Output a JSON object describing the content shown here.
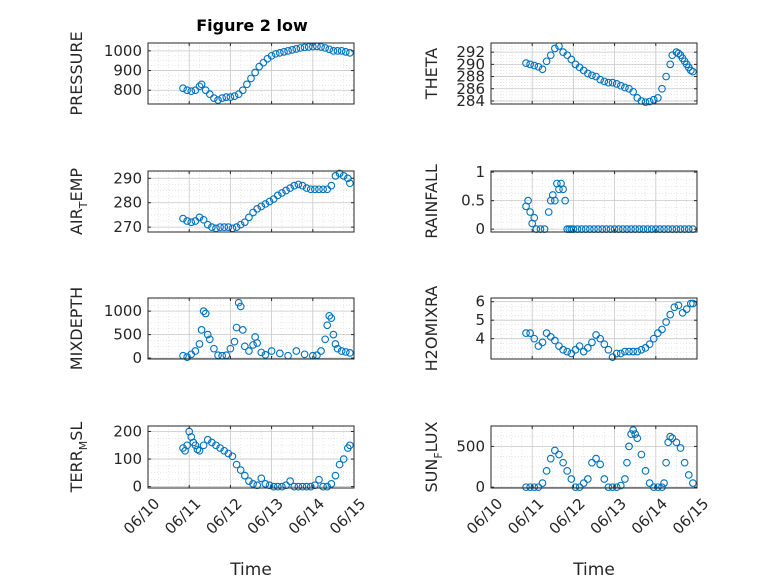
{
  "figure": {
    "title": "Figure 2 low"
  },
  "chart_data": [
    {
      "type": "scatter",
      "ylabel": "PRESSURE",
      "ylim": [
        730,
        1040
      ],
      "yticks": [
        800,
        900,
        1000
      ],
      "xticks": [
        "06/10",
        "06/11",
        "06/12",
        "06/13",
        "06/14",
        "06/15"
      ],
      "xlabel": "",
      "grid": true,
      "x": [
        0.85,
        0.95,
        1.05,
        1.15,
        1.25,
        1.3,
        1.4,
        1.5,
        1.6,
        1.7,
        1.8,
        1.9,
        2.0,
        2.1,
        2.2,
        2.3,
        2.4,
        2.5,
        2.6,
        2.7,
        2.8,
        2.9,
        3.0,
        3.1,
        3.2,
        3.3,
        3.4,
        3.5,
        3.6,
        3.7,
        3.8,
        3.9,
        4.0,
        4.1,
        4.2,
        4.3,
        4.4,
        4.5,
        4.6,
        4.7,
        4.8,
        4.9
      ],
      "y": [
        810,
        800,
        795,
        800,
        820,
        830,
        800,
        780,
        760,
        750,
        760,
        765,
        765,
        770,
        780,
        800,
        830,
        860,
        890,
        920,
        940,
        960,
        975,
        985,
        990,
        995,
        1000,
        1005,
        1010,
        1015,
        1018,
        1020,
        1022,
        1023,
        1020,
        1015,
        1008,
        1000,
        1000,
        1000,
        995,
        990
      ]
    },
    {
      "type": "scatter",
      "ylabel": "THETA",
      "ylim": [
        283.5,
        293.5
      ],
      "yticks": [
        284,
        286,
        288,
        290,
        292
      ],
      "xticks": [
        "06/10",
        "06/11",
        "06/12",
        "06/13",
        "06/14",
        "06/15"
      ],
      "xlabel": "",
      "grid": true,
      "x": [
        0.85,
        0.95,
        1.05,
        1.15,
        1.25,
        1.35,
        1.45,
        1.55,
        1.65,
        1.75,
        1.85,
        1.95,
        2.05,
        2.15,
        2.25,
        2.35,
        2.45,
        2.55,
        2.65,
        2.75,
        2.85,
        2.95,
        3.05,
        3.15,
        3.25,
        3.35,
        3.45,
        3.55,
        3.65,
        3.75,
        3.85,
        3.95,
        4.05,
        4.15,
        4.25,
        4.35,
        4.4,
        4.5,
        4.55,
        4.6,
        4.65,
        4.7,
        4.75,
        4.8,
        4.85,
        4.9
      ],
      "y": [
        290.2,
        290,
        289.8,
        289.6,
        289.2,
        290.5,
        291.5,
        292.6,
        293,
        292,
        291.5,
        290.8,
        290,
        289.5,
        289,
        288.5,
        288.2,
        288,
        287.5,
        287.2,
        287,
        287,
        286.8,
        286.5,
        286.2,
        286,
        285.5,
        284.5,
        284,
        283.8,
        283.9,
        284.2,
        284.5,
        286,
        288,
        290,
        291.5,
        292,
        291.8,
        291.5,
        291,
        290.5,
        290,
        289.5,
        289,
        288.8
      ]
    },
    {
      "type": "scatter",
      "ylabel": "AIR_TEMP",
      "ylim": [
        268,
        293
      ],
      "yticks": [
        270,
        280,
        290
      ],
      "xticks": [
        "06/10",
        "06/11",
        "06/12",
        "06/13",
        "06/14",
        "06/15"
      ],
      "xlabel": "",
      "grid": true,
      "x": [
        0.85,
        0.95,
        1.05,
        1.15,
        1.25,
        1.35,
        1.45,
        1.55,
        1.65,
        1.75,
        1.85,
        1.95,
        2.05,
        2.15,
        2.25,
        2.35,
        2.45,
        2.55,
        2.65,
        2.75,
        2.85,
        2.95,
        3.05,
        3.15,
        3.25,
        3.35,
        3.45,
        3.55,
        3.65,
        3.75,
        3.85,
        3.95,
        4.05,
        4.15,
        4.25,
        4.35,
        4.45,
        4.55,
        4.65,
        4.75,
        4.85,
        4.9
      ],
      "y": [
        273.5,
        272.5,
        272,
        272.5,
        274,
        273,
        271,
        270,
        269.5,
        270,
        270,
        270,
        269.5,
        270,
        271,
        272,
        274,
        276,
        277.5,
        278.5,
        279.5,
        280.5,
        281.5,
        283,
        284,
        285,
        286,
        287,
        287.5,
        287,
        286,
        285.5,
        285.5,
        285.5,
        285.5,
        285.5,
        287,
        291,
        292,
        291,
        290,
        288
      ]
    },
    {
      "type": "scatter",
      "ylabel": "RAINFALL",
      "ylim": [
        -0.05,
        1.02
      ],
      "yticks": [
        0,
        0.5,
        1
      ],
      "xticks": [
        "06/10",
        "06/11",
        "06/12",
        "06/13",
        "06/14",
        "06/15"
      ],
      "xlabel": "",
      "grid": true,
      "x": [
        0.85,
        0.9,
        0.95,
        1.0,
        1.05,
        1.1,
        1.2,
        1.3,
        1.4,
        1.45,
        1.5,
        1.55,
        1.6,
        1.65,
        1.7,
        1.75,
        1.8,
        1.85,
        1.9,
        1.95,
        2.0,
        2.1,
        2.2,
        2.3,
        2.4,
        2.5,
        2.6,
        2.7,
        2.8,
        2.9,
        3.0,
        3.1,
        3.2,
        3.3,
        3.4,
        3.5,
        3.6,
        3.7,
        3.8,
        3.9,
        4.0,
        4.1,
        4.2,
        4.3,
        4.4,
        4.5,
        4.6,
        4.7,
        4.8,
        4.9
      ],
      "y": [
        0.4,
        0.5,
        0.3,
        0.1,
        0.2,
        0,
        0,
        0,
        0.3,
        0.5,
        0.6,
        0.5,
        0.8,
        0.7,
        0.8,
        0.7,
        0.5,
        0,
        0,
        0,
        0,
        0,
        0,
        0,
        0,
        0,
        0,
        0,
        0,
        0,
        0,
        0,
        0,
        0,
        0,
        0,
        0,
        0,
        0,
        0,
        0,
        0,
        0,
        0,
        0,
        0,
        0,
        0,
        0,
        0
      ]
    },
    {
      "type": "scatter",
      "ylabel": "MIXDEPTH",
      "ylim": [
        -20,
        1280
      ],
      "yticks": [
        0,
        500,
        1000
      ],
      "xticks": [
        "06/10",
        "06/11",
        "06/12",
        "06/13",
        "06/14",
        "06/15"
      ],
      "xlabel": "",
      "grid": true,
      "x": [
        0.85,
        0.95,
        1.05,
        1.15,
        1.25,
        1.3,
        1.35,
        1.4,
        1.45,
        1.5,
        1.6,
        1.7,
        1.8,
        1.9,
        2.0,
        2.1,
        2.15,
        2.2,
        2.25,
        2.3,
        2.35,
        2.45,
        2.55,
        2.6,
        2.65,
        2.75,
        2.85,
        3.0,
        3.2,
        3.4,
        3.6,
        3.8,
        4.0,
        4.1,
        4.2,
        4.3,
        4.35,
        4.4,
        4.45,
        4.5,
        4.55,
        4.6,
        4.7,
        4.8,
        4.9
      ],
      "y": [
        50,
        20,
        80,
        150,
        300,
        600,
        1000,
        950,
        500,
        400,
        200,
        60,
        50,
        60,
        200,
        350,
        650,
        1180,
        1100,
        600,
        250,
        150,
        280,
        450,
        320,
        120,
        70,
        150,
        100,
        50,
        150,
        80,
        50,
        60,
        150,
        400,
        700,
        900,
        850,
        500,
        300,
        200,
        150,
        130,
        110
      ]
    },
    {
      "type": "scatter",
      "ylabel": "H2OMIXRA",
      "ylim": [
        2.9,
        6.2
      ],
      "yticks": [
        4,
        5,
        6
      ],
      "xticks": [
        "06/10",
        "06/11",
        "06/12",
        "06/13",
        "06/14",
        "06/15"
      ],
      "xlabel": "",
      "grid": true,
      "x": [
        0.85,
        0.95,
        1.05,
        1.15,
        1.25,
        1.35,
        1.45,
        1.55,
        1.65,
        1.75,
        1.85,
        1.95,
        2.05,
        2.15,
        2.25,
        2.35,
        2.45,
        2.55,
        2.65,
        2.75,
        2.85,
        2.95,
        3.05,
        3.15,
        3.25,
        3.35,
        3.45,
        3.55,
        3.65,
        3.75,
        3.85,
        3.95,
        4.05,
        4.15,
        4.25,
        4.35,
        4.45,
        4.55,
        4.65,
        4.75,
        4.85,
        4.9
      ],
      "y": [
        4.3,
        4.3,
        4.0,
        3.6,
        3.8,
        4.3,
        4.1,
        3.9,
        3.6,
        3.4,
        3.3,
        3.2,
        3.4,
        3.6,
        3.3,
        3.5,
        3.8,
        4.2,
        4.0,
        3.7,
        3.4,
        3.0,
        3.2,
        3.2,
        3.3,
        3.3,
        3.3,
        3.3,
        3.4,
        3.5,
        3.7,
        4.0,
        4.3,
        4.5,
        4.9,
        5.3,
        5.7,
        5.8,
        5.4,
        5.6,
        5.9,
        5.9
      ]
    },
    {
      "type": "scatter",
      "ylabel": "TERR_MSL",
      "ylim": [
        -5,
        220
      ],
      "yticks": [
        0,
        100,
        200
      ],
      "xticks": [
        "06/10",
        "06/11",
        "06/12",
        "06/13",
        "06/14",
        "06/15"
      ],
      "xlabel": "06/10 06/11 06/12 06/13 06/14 06/15",
      "grid": true,
      "x": [
        0.85,
        0.9,
        0.95,
        1.0,
        1.05,
        1.1,
        1.15,
        1.2,
        1.25,
        1.35,
        1.45,
        1.55,
        1.65,
        1.75,
        1.85,
        1.95,
        2.05,
        2.15,
        2.25,
        2.35,
        2.45,
        2.55,
        2.65,
        2.75,
        2.85,
        2.95,
        3.05,
        3.15,
        3.25,
        3.35,
        3.45,
        3.55,
        3.65,
        3.75,
        3.85,
        3.95,
        4.05,
        4.15,
        4.25,
        4.35,
        4.45,
        4.55,
        4.65,
        4.75,
        4.85,
        4.9
      ],
      "y": [
        140,
        130,
        150,
        200,
        180,
        160,
        150,
        135,
        130,
        150,
        170,
        160,
        150,
        140,
        130,
        120,
        110,
        80,
        60,
        40,
        20,
        10,
        5,
        30,
        10,
        5,
        0,
        0,
        0,
        5,
        20,
        0,
        0,
        0,
        0,
        0,
        5,
        25,
        0,
        0,
        10,
        40,
        80,
        100,
        140,
        150
      ]
    },
    {
      "type": "scatter",
      "ylabel": "SUN_FLUX",
      "ylim": [
        -10,
        750
      ],
      "yticks": [
        0,
        500
      ],
      "xticks": [
        "06/10",
        "06/11",
        "06/12",
        "06/13",
        "06/14",
        "06/15"
      ],
      "xlabel": "",
      "grid": true,
      "x": [
        0.85,
        0.95,
        1.05,
        1.15,
        1.25,
        1.35,
        1.45,
        1.55,
        1.65,
        1.75,
        1.85,
        1.95,
        2.05,
        2.15,
        2.25,
        2.35,
        2.45,
        2.55,
        2.65,
        2.75,
        2.85,
        2.95,
        3.05,
        3.15,
        3.25,
        3.3,
        3.35,
        3.4,
        3.45,
        3.5,
        3.55,
        3.65,
        3.75,
        3.85,
        3.95,
        4.05,
        4.15,
        4.2,
        4.25,
        4.3,
        4.35,
        4.4,
        4.5,
        4.6,
        4.7,
        4.8,
        4.9
      ],
      "y": [
        0,
        0,
        0,
        0,
        50,
        200,
        350,
        450,
        400,
        300,
        200,
        100,
        0,
        0,
        50,
        100,
        300,
        350,
        280,
        100,
        0,
        0,
        0,
        20,
        100,
        300,
        500,
        650,
        700,
        650,
        600,
        400,
        200,
        50,
        0,
        0,
        0,
        50,
        300,
        550,
        620,
        600,
        550,
        480,
        300,
        150,
        50
      ]
    }
  ],
  "xaxis_labels": [
    "Time",
    "Time"
  ]
}
